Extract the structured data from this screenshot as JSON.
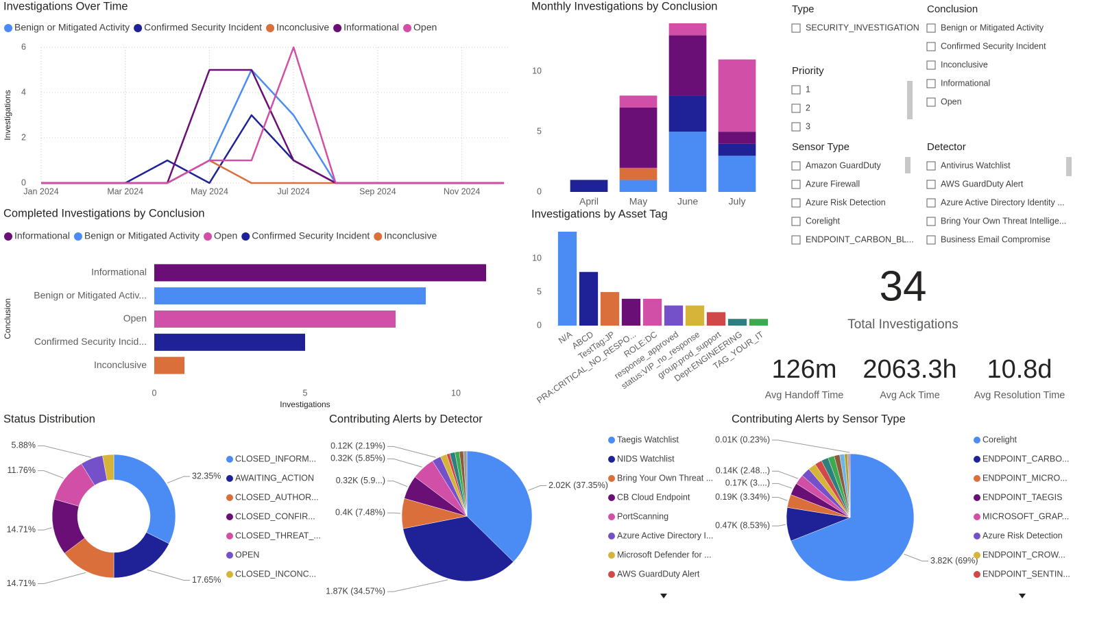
{
  "chart_data": [
    {
      "type": "line",
      "title": "Investigations Over Time",
      "y_label": "Investigations",
      "x": [
        "Jan 2024",
        "Feb 2024",
        "Mar 2024",
        "Apr 2024",
        "May 2024",
        "Jun 2024",
        "Jul 2024",
        "Aug 2024",
        "Sep 2024",
        "Oct 2024",
        "Nov 2024",
        "Dec 2024"
      ],
      "xticks": [
        "Jan 2024",
        "Mar 2024",
        "May 2024",
        "Jul 2024",
        "Sep 2024",
        "Nov 2024"
      ],
      "ylim": [
        0,
        6
      ],
      "yticks": [
        0,
        2,
        4,
        6
      ],
      "grid": true,
      "series": [
        {
          "name": "Benign or Mitigated Activity",
          "color": "#4A8CF4",
          "values": [
            0,
            0,
            0,
            0,
            1,
            5,
            3,
            0,
            0,
            0,
            0,
            0
          ]
        },
        {
          "name": "Confirmed Security Incident",
          "color": "#1E2296",
          "values": [
            0,
            0,
            0,
            1,
            0,
            3,
            1,
            0,
            0,
            0,
            0,
            0
          ]
        },
        {
          "name": "Inconclusive",
          "color": "#DA6F3B",
          "values": [
            0,
            0,
            0,
            0,
            1,
            0,
            0,
            0,
            0,
            0,
            0,
            0
          ]
        },
        {
          "name": "Informational",
          "color": "#6A0F75",
          "values": [
            0,
            0,
            0,
            0,
            5,
            5,
            1,
            0,
            0,
            0,
            0,
            0
          ]
        },
        {
          "name": "Open",
          "color": "#D14FA6",
          "values": [
            0,
            0,
            0,
            0,
            1,
            1,
            6,
            0,
            0,
            0,
            0,
            0
          ]
        }
      ]
    },
    {
      "type": "bar",
      "stacked": true,
      "title": "Monthly Investigations by Conclusion",
      "categories": [
        "April",
        "May",
        "June",
        "July"
      ],
      "ylim": [
        0,
        14
      ],
      "yticks": [
        0,
        5,
        10
      ],
      "grid": false,
      "series": [
        {
          "color": "#4A8CF4",
          "values": [
            0,
            1,
            5,
            3
          ]
        },
        {
          "color": "#1E2296",
          "values": [
            1,
            0,
            3,
            1
          ]
        },
        {
          "color": "#DA6F3B",
          "values": [
            0,
            1,
            0,
            0
          ]
        },
        {
          "color": "#6A0F75",
          "values": [
            0,
            5,
            5,
            1
          ]
        },
        {
          "color": "#D14FA6",
          "values": [
            0,
            1,
            1,
            6
          ]
        }
      ]
    },
    {
      "type": "bar",
      "orientation": "horizontal",
      "title": "Completed Investigations by Conclusion",
      "x_label": "Investigations",
      "y_label": "Conclusion",
      "legend": [
        {
          "name": "Informational",
          "color": "#6A0F75"
        },
        {
          "name": "Benign or Mitigated Activity",
          "color": "#4A8CF4"
        },
        {
          "name": "Open",
          "color": "#D14FA6"
        },
        {
          "name": "Confirmed Security Incident",
          "color": "#1E2296"
        },
        {
          "name": "Inconclusive",
          "color": "#DA6F3B"
        }
      ],
      "categories": [
        "Informational",
        "Benign or Mitigated Activ...",
        "Open",
        "Confirmed Security Incid...",
        "Inconclusive"
      ],
      "values": [
        11,
        9,
        8,
        5,
        1
      ],
      "colors": [
        "#6A0F75",
        "#4A8CF4",
        "#D14FA6",
        "#1E2296",
        "#DA6F3B"
      ],
      "xlim": [
        0,
        12
      ],
      "xticks": [
        0,
        5,
        10
      ]
    },
    {
      "type": "bar",
      "title": "Investigations by Asset Tag",
      "categories": [
        "N/A",
        "ABCD",
        "TestTag:JP",
        "PRA:CRITICAL_NO_RESPO...",
        "ROLE:DC",
        "response_approved",
        "status:VIP_no_response",
        "group:prod_support",
        "Dept:ENGINEERING",
        "TAG_YOUR_IT"
      ],
      "values": [
        14,
        8,
        5,
        4,
        4,
        3,
        3,
        2,
        1,
        1
      ],
      "colors": [
        "#4A8CF4",
        "#1E2296",
        "#DA6F3B",
        "#6A0F75",
        "#D14FA6",
        "#7451C9",
        "#D6B43A",
        "#D04848",
        "#2E7F80",
        "#3DAA4F"
      ],
      "ylim": [
        0,
        14
      ],
      "yticks": [
        0,
        5,
        10
      ]
    },
    {
      "type": "pie",
      "donut": true,
      "title": "Status Distribution",
      "categories": [
        "CLOSED_INFORM...",
        "AWAITING_ACTION",
        "CLOSED_AUTHOR...",
        "CLOSED_CONFIR...",
        "CLOSED_THREAT_...",
        "OPEN",
        "CLOSED_INCONC..."
      ],
      "values": [
        32.35,
        17.65,
        14.71,
        14.71,
        11.76,
        5.88,
        2.94
      ],
      "value_labels": [
        "32.35%",
        "17.65%",
        "14.71%",
        "14.71%",
        "11.76%",
        "5.88%",
        null
      ],
      "colors": [
        "#4A8CF4",
        "#1E2296",
        "#DA6F3B",
        "#6A0F75",
        "#D14FA6",
        "#7451C9",
        "#D6B43A"
      ]
    },
    {
      "type": "pie",
      "title": "Contributing Alerts by Detector",
      "categories": [
        "Taegis Watchlist",
        "NIDS Watchlist",
        "Bring Your Own Threat ...",
        "CB Cloud Endpoint",
        "PortScanning",
        "Azure Active Directory I...",
        "Microsoft Defender for ...",
        "AWS GuardDuty Alert",
        null,
        null,
        null,
        null
      ],
      "values": [
        37.35,
        34.57,
        7.48,
        5.9,
        5.85,
        2.19,
        1.6,
        0.8,
        1.3,
        1.1,
        1.0,
        0.86
      ],
      "value_labels": [
        "2.02K (37.35%)",
        "1.87K (34.57%)",
        "0.4K (7.48%)",
        "0.32K (5.9...)",
        "0.32K (5.85%)",
        "0.12K (2.19%)",
        null,
        null,
        null,
        null,
        null,
        null
      ],
      "colors": [
        "#4A8CF4",
        "#1E2296",
        "#DA6F3B",
        "#6A0F75",
        "#D14FA6",
        "#7451C9",
        "#D6B43A",
        "#D04848",
        "#2E7F80",
        "#3DAA4F",
        "#8C5A3C",
        "#9B9B9B"
      ]
    },
    {
      "type": "pie",
      "title": "Contributing Alerts by Sensor Type",
      "categories": [
        "Corelight",
        "ENDPOINT_CARBO...",
        "ENDPOINT_MICRO...",
        "ENDPOINT_TAEGIS",
        "MICROSOFT_GRAP...",
        "Azure Risk Detection",
        "ENDPOINT_CROW...",
        "ENDPOINT_SENTIN...",
        null,
        null,
        null,
        null,
        null,
        null,
        null
      ],
      "values": [
        69,
        8.53,
        3.34,
        3.1,
        2.48,
        2.3,
        2,
        1.8,
        1.8,
        1.6,
        1.4,
        1.2,
        0.8,
        0.42,
        0.23
      ],
      "value_labels": [
        "3.82K (69%)",
        "0.47K (8.53%)",
        "0.19K (3.34%)",
        "0.17K (3....)",
        "0.14K (2.48...)",
        null,
        null,
        null,
        null,
        null,
        null,
        null,
        null,
        null,
        "0.01K (0.23%)"
      ],
      "colors": [
        "#4A8CF4",
        "#1E2296",
        "#DA6F3B",
        "#6A0F75",
        "#D14FA6",
        "#7451C9",
        "#D6B43A",
        "#D04848",
        "#2E7F80",
        "#3DAA4F",
        "#8C5A3C",
        "#6DB4E8",
        "#B0A030",
        "#9B9B9B",
        "#C03090"
      ]
    }
  ],
  "slicers": [
    {
      "title": "Type",
      "items": [
        "SECURITY_INVESTIGATION"
      ]
    },
    {
      "title": "Conclusion",
      "items": [
        "Benign or Mitigated Activity",
        "Confirmed Security Incident",
        "Inconclusive",
        "Informational",
        "Open"
      ]
    },
    {
      "title": "Priority",
      "items": [
        "1",
        "2",
        "3"
      ]
    },
    {
      "title": "Sensor Type",
      "items": [
        "Amazon GuardDuty",
        "Azure Firewall",
        "Azure Risk Detection",
        "Corelight",
        "ENDPOINT_CARBON_BL..."
      ]
    },
    {
      "title": "Detector",
      "items": [
        "Antivirus Watchlist",
        "AWS GuardDuty Alert",
        "Azure Active Directory Identity ...",
        "Bring Your Own Threat Intellige...",
        "Business Email Compromise"
      ]
    }
  ],
  "cards": [
    {
      "value": 34,
      "label": "Total Investigations"
    },
    {
      "value": "126m",
      "label": "Avg Handoff Time"
    },
    {
      "value": "2063.3h",
      "label": "Avg Ack Time"
    },
    {
      "value": "10.8d",
      "label": "Avg Resolution Time"
    }
  ]
}
